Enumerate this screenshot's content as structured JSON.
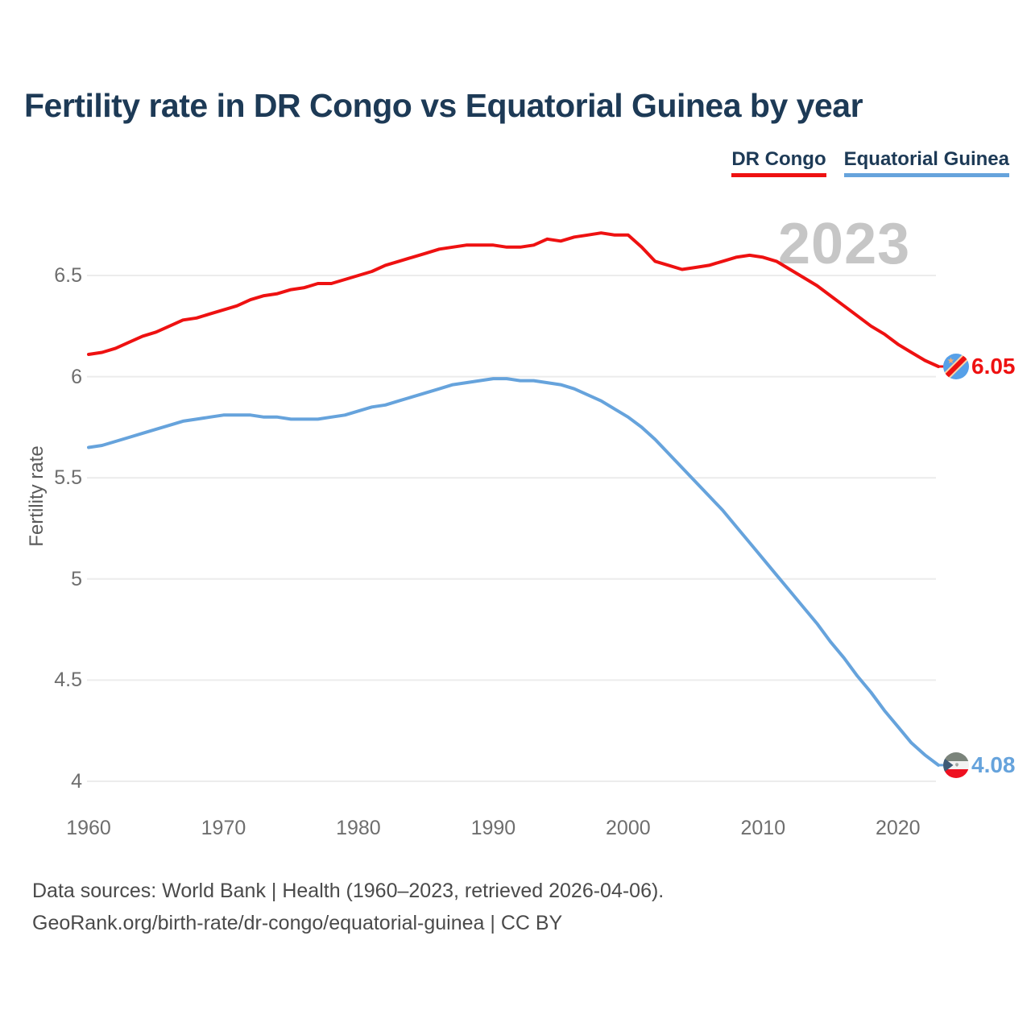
{
  "page": {
    "title": "Fertility rate in DR Congo vs Equatorial Guinea by year",
    "watermark": "2023"
  },
  "chart_data": {
    "type": "line",
    "title": "Fertility rate in DR Congo vs Equatorial Guinea by year",
    "xlabel": "",
    "ylabel": "Fertility rate",
    "grid": "horizontal",
    "legend_position": "top-right",
    "ylim": [
      3.9,
      6.85
    ],
    "yticks": [
      "4",
      "4.5",
      "5",
      "5.5",
      "6",
      "6.5"
    ],
    "ytick_values": [
      4,
      4.5,
      5,
      5.5,
      6,
      6.5
    ],
    "xticks": [
      "1960",
      "1970",
      "1980",
      "1990",
      "2000",
      "2010",
      "2020"
    ],
    "xtick_values": [
      1960,
      1970,
      1980,
      1990,
      2000,
      2010,
      2020
    ],
    "years": [
      1960,
      1961,
      1962,
      1963,
      1964,
      1965,
      1966,
      1967,
      1968,
      1969,
      1970,
      1971,
      1972,
      1973,
      1974,
      1975,
      1976,
      1977,
      1978,
      1979,
      1980,
      1981,
      1982,
      1983,
      1984,
      1985,
      1986,
      1987,
      1988,
      1989,
      1990,
      1991,
      1992,
      1993,
      1994,
      1995,
      1996,
      1997,
      1998,
      1999,
      2000,
      2001,
      2002,
      2003,
      2004,
      2005,
      2006,
      2007,
      2008,
      2009,
      2010,
      2011,
      2012,
      2013,
      2014,
      2015,
      2016,
      2017,
      2018,
      2019,
      2020,
      2021,
      2022,
      2023
    ],
    "series": [
      {
        "name": "DR Congo",
        "color": "#ee1111",
        "end_value_label": "6.05",
        "flag": "dr-congo",
        "values": [
          6.11,
          6.12,
          6.14,
          6.17,
          6.2,
          6.22,
          6.25,
          6.28,
          6.29,
          6.31,
          6.33,
          6.35,
          6.38,
          6.4,
          6.41,
          6.43,
          6.44,
          6.46,
          6.46,
          6.48,
          6.5,
          6.52,
          6.55,
          6.57,
          6.59,
          6.61,
          6.63,
          6.64,
          6.65,
          6.65,
          6.65,
          6.64,
          6.64,
          6.65,
          6.68,
          6.67,
          6.69,
          6.7,
          6.71,
          6.7,
          6.7,
          6.64,
          6.57,
          6.55,
          6.53,
          6.54,
          6.55,
          6.57,
          6.59,
          6.6,
          6.59,
          6.57,
          6.53,
          6.49,
          6.45,
          6.4,
          6.35,
          6.3,
          6.25,
          6.21,
          6.16,
          6.12,
          6.08,
          6.05
        ]
      },
      {
        "name": "Equatorial Guinea",
        "color": "#66a3dc",
        "end_value_label": "4.08",
        "flag": "equatorial-guinea",
        "values": [
          5.65,
          5.66,
          5.68,
          5.7,
          5.72,
          5.74,
          5.76,
          5.78,
          5.79,
          5.8,
          5.81,
          5.81,
          5.81,
          5.8,
          5.8,
          5.79,
          5.79,
          5.79,
          5.8,
          5.81,
          5.83,
          5.85,
          5.86,
          5.88,
          5.9,
          5.92,
          5.94,
          5.96,
          5.97,
          5.98,
          5.99,
          5.99,
          5.98,
          5.98,
          5.97,
          5.96,
          5.94,
          5.91,
          5.88,
          5.84,
          5.8,
          5.75,
          5.69,
          5.62,
          5.55,
          5.48,
          5.41,
          5.34,
          5.26,
          5.18,
          5.1,
          5.02,
          4.94,
          4.86,
          4.78,
          4.69,
          4.61,
          4.52,
          4.44,
          4.35,
          4.27,
          4.19,
          4.13,
          4.08
        ]
      }
    ]
  },
  "footer": {
    "line1": "Data sources: World Bank | Health (1960–2023, retrieved 2026-04-06).",
    "line2": "GeoRank.org/birth-rate/dr-congo/equatorial-guinea | CC BY"
  }
}
